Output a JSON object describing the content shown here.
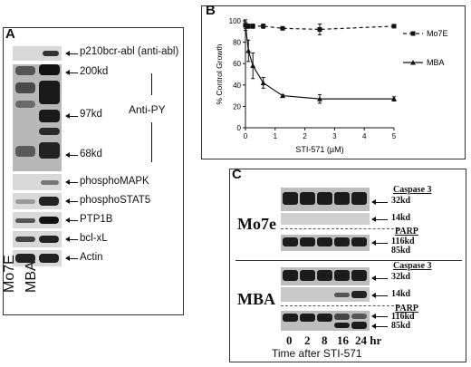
{
  "panelA": {
    "label": "A",
    "rows": [
      {
        "name": "p210",
        "label": "p210bcr-abl (anti-abl)"
      },
      {
        "name": "200",
        "label": "200kd"
      },
      {
        "name": "97",
        "label": "97kd"
      },
      {
        "name": "68",
        "label": "68kd"
      },
      {
        "name": "pmapk",
        "label": "phosphoMAPK"
      },
      {
        "name": "pstat5",
        "label": "phosphoSTAT5"
      },
      {
        "name": "ptp1b",
        "label": "PTP1B"
      },
      {
        "name": "bclxl",
        "label": "bcl-xL"
      },
      {
        "name": "actin",
        "label": "Actin"
      }
    ],
    "antipy": "Anti-PY",
    "lane1": "Mo7E",
    "lane2": "MBA"
  },
  "panelB": {
    "label": "B",
    "chart_data": {
      "type": "line",
      "xlabel": "STI-571 (µM)",
      "ylabel": "% Control Growth",
      "xlim": [
        0,
        5
      ],
      "ylim": [
        0,
        100
      ],
      "xticks": [
        0,
        1,
        2,
        3,
        4,
        5
      ],
      "yticks": [
        0,
        20,
        40,
        60,
        80,
        100
      ],
      "legend_position": "right",
      "series": [
        {
          "name": "Mo7E",
          "style": "dashed",
          "x": [
            0,
            0.1,
            0.25,
            0.6,
            1.25,
            2.5,
            5
          ],
          "y": [
            96,
            95,
            95,
            95,
            93,
            92,
            95
          ],
          "err": [
            3,
            2,
            2,
            2,
            1,
            5,
            1
          ]
        },
        {
          "name": "MBA",
          "style": "solid",
          "x": [
            0,
            0.1,
            0.25,
            0.6,
            1.25,
            2.5,
            5
          ],
          "y": [
            96,
            72,
            58,
            42,
            30,
            27,
            27
          ],
          "err": [
            5,
            10,
            12,
            5,
            1,
            4,
            2
          ]
        }
      ]
    }
  },
  "panelC": {
    "label": "C",
    "mo7e": "Mo7e",
    "mba": "MBA",
    "caspase": "Caspase 3",
    "parp": "PARP",
    "k32": "32kd",
    "k14": "14kd",
    "k116": "116kd",
    "k85": "85kd",
    "times": [
      "0",
      "2",
      "8",
      "16",
      "24 hr"
    ],
    "caption": "Time after STI-571"
  }
}
